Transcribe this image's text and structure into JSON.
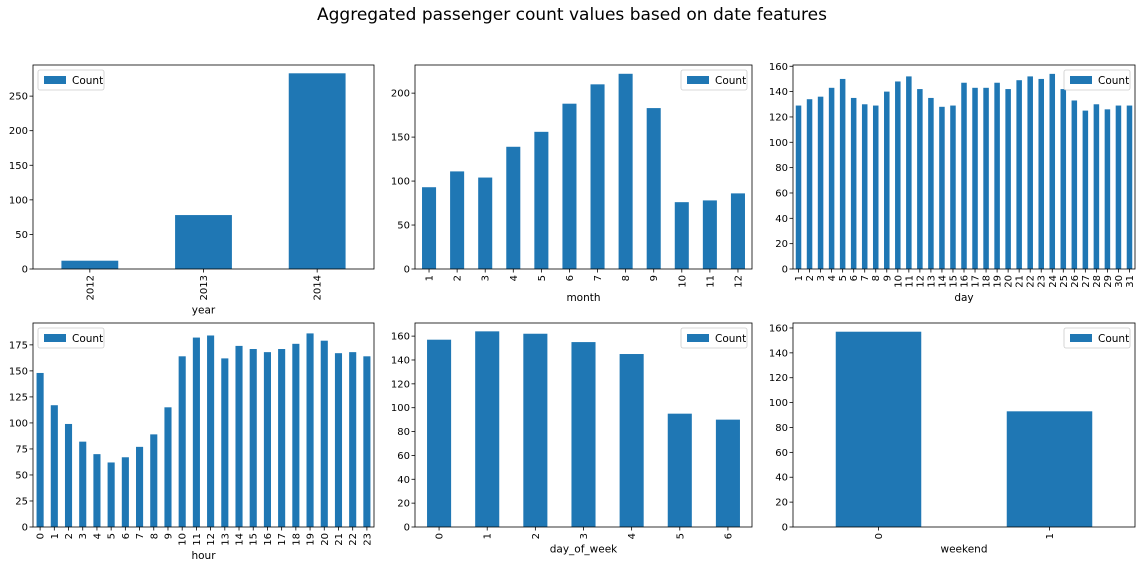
{
  "title": "Aggregated passenger count values based on date features",
  "colors": {
    "bar": "#1f77b4",
    "axis": "#000000",
    "legend_border": "#cccccc"
  },
  "chart_data": [
    {
      "type": "bar",
      "xlabel": "year",
      "ylabel": "",
      "legend": "Count",
      "legend_position": "top-left",
      "categories": [
        "2012",
        "2013",
        "2014"
      ],
      "values": [
        12,
        78,
        283
      ],
      "ylim": [
        0,
        295
      ],
      "yticks": [
        0,
        50,
        100,
        150,
        200,
        250
      ]
    },
    {
      "type": "bar",
      "xlabel": "month",
      "ylabel": "",
      "legend": "Count",
      "legend_position": "top-right",
      "categories": [
        "1",
        "2",
        "3",
        "4",
        "5",
        "6",
        "7",
        "8",
        "9",
        "10",
        "11",
        "12"
      ],
      "values": [
        93,
        111,
        104,
        139,
        156,
        188,
        210,
        222,
        183,
        76,
        78,
        86
      ],
      "ylim": [
        0,
        232
      ],
      "yticks": [
        0,
        50,
        100,
        150,
        200
      ]
    },
    {
      "type": "bar",
      "xlabel": "day",
      "ylabel": "",
      "legend": "Count",
      "legend_position": "top-right",
      "categories": [
        "1",
        "2",
        "3",
        "4",
        "5",
        "6",
        "7",
        "8",
        "9",
        "10",
        "11",
        "12",
        "13",
        "14",
        "15",
        "16",
        "17",
        "18",
        "19",
        "20",
        "21",
        "22",
        "23",
        "24",
        "25",
        "26",
        "27",
        "28",
        "29",
        "30",
        "31"
      ],
      "values": [
        129,
        134,
        136,
        143,
        150,
        135,
        130,
        129,
        140,
        148,
        152,
        142,
        135,
        128,
        129,
        147,
        143,
        143,
        147,
        142,
        149,
        152,
        150,
        154,
        142,
        133,
        125,
        130,
        126,
        129,
        129
      ],
      "ylim": [
        0,
        161
      ],
      "yticks": [
        0,
        20,
        40,
        60,
        80,
        100,
        120,
        140,
        160
      ]
    },
    {
      "type": "bar",
      "xlabel": "hour",
      "ylabel": "",
      "legend": "Count",
      "legend_position": "top-left",
      "categories": [
        "0",
        "1",
        "2",
        "3",
        "4",
        "5",
        "6",
        "7",
        "8",
        "9",
        "10",
        "11",
        "12",
        "13",
        "14",
        "15",
        "16",
        "17",
        "18",
        "19",
        "20",
        "21",
        "22",
        "23"
      ],
      "values": [
        148,
        117,
        99,
        82,
        70,
        62,
        67,
        77,
        89,
        115,
        164,
        182,
        184,
        162,
        174,
        171,
        168,
        171,
        176,
        186,
        179,
        167,
        168,
        164
      ],
      "ylim": [
        0,
        196
      ],
      "yticks": [
        0,
        25,
        50,
        75,
        100,
        125,
        150,
        175
      ]
    },
    {
      "type": "bar",
      "xlabel": "day_of_week",
      "ylabel": "",
      "legend": "Count",
      "legend_position": "top-right",
      "categories": [
        "0",
        "1",
        "2",
        "3",
        "4",
        "5",
        "6"
      ],
      "values": [
        157,
        164,
        162,
        155,
        145,
        95,
        90
      ],
      "ylim": [
        0,
        171
      ],
      "yticks": [
        0,
        20,
        40,
        60,
        80,
        100,
        120,
        140,
        160
      ]
    },
    {
      "type": "bar",
      "xlabel": "weekend",
      "ylabel": "",
      "legend": "Count",
      "legend_position": "top-right",
      "categories": [
        "0",
        "1"
      ],
      "values": [
        157,
        93
      ],
      "ylim": [
        0,
        164
      ],
      "yticks": [
        0,
        20,
        40,
        60,
        80,
        100,
        120,
        140,
        160
      ]
    }
  ]
}
